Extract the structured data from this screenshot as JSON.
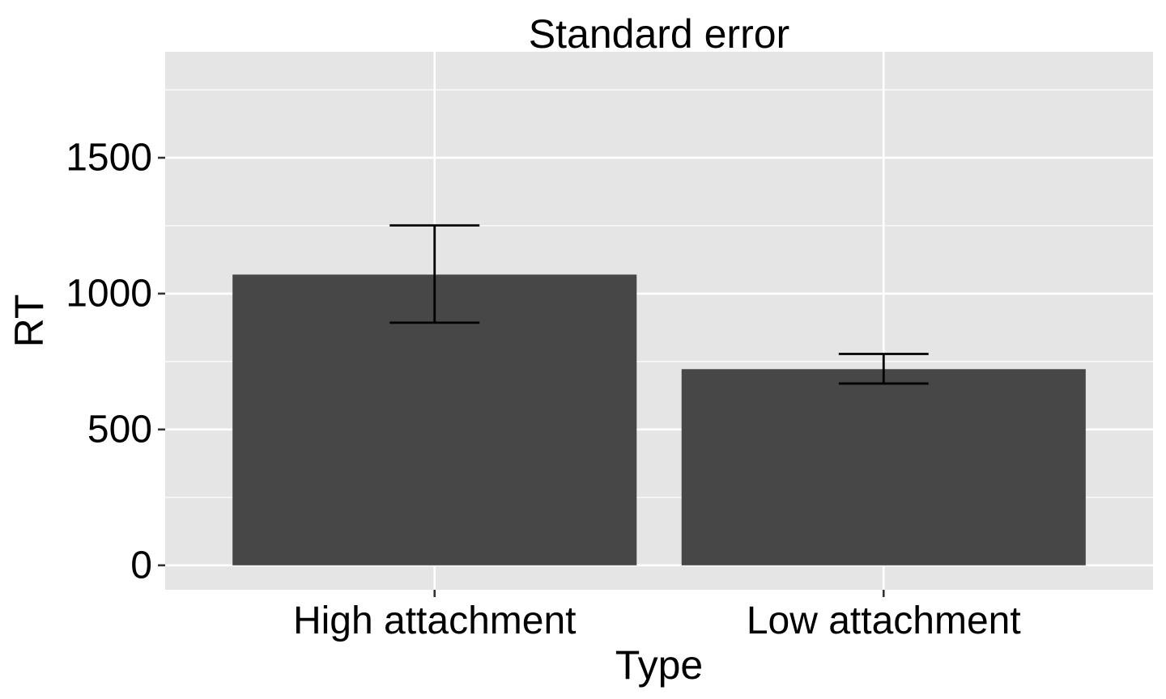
{
  "chart_data": {
    "type": "bar",
    "title": "Standard error",
    "xlabel": "Type",
    "ylabel": "RT",
    "categories": [
      "High attachment",
      "Low attachment"
    ],
    "values": [
      1070,
      722
    ],
    "error_bars": [
      {
        "lower": 893,
        "upper": 1251
      },
      {
        "lower": 669,
        "upper": 778
      }
    ],
    "ylim": [
      -90,
      1890
    ],
    "yticks": [
      0,
      500,
      1000,
      1500
    ],
    "ytick_labels": [
      "0",
      "500",
      "1000",
      "1500"
    ],
    "grid": true,
    "legend": "none",
    "colors": {
      "panel": "#e5e5e5",
      "grid": "#ffffff",
      "bar": "#474747",
      "errorbar": "#000000",
      "tick": "#333333",
      "text": "#000000"
    }
  }
}
